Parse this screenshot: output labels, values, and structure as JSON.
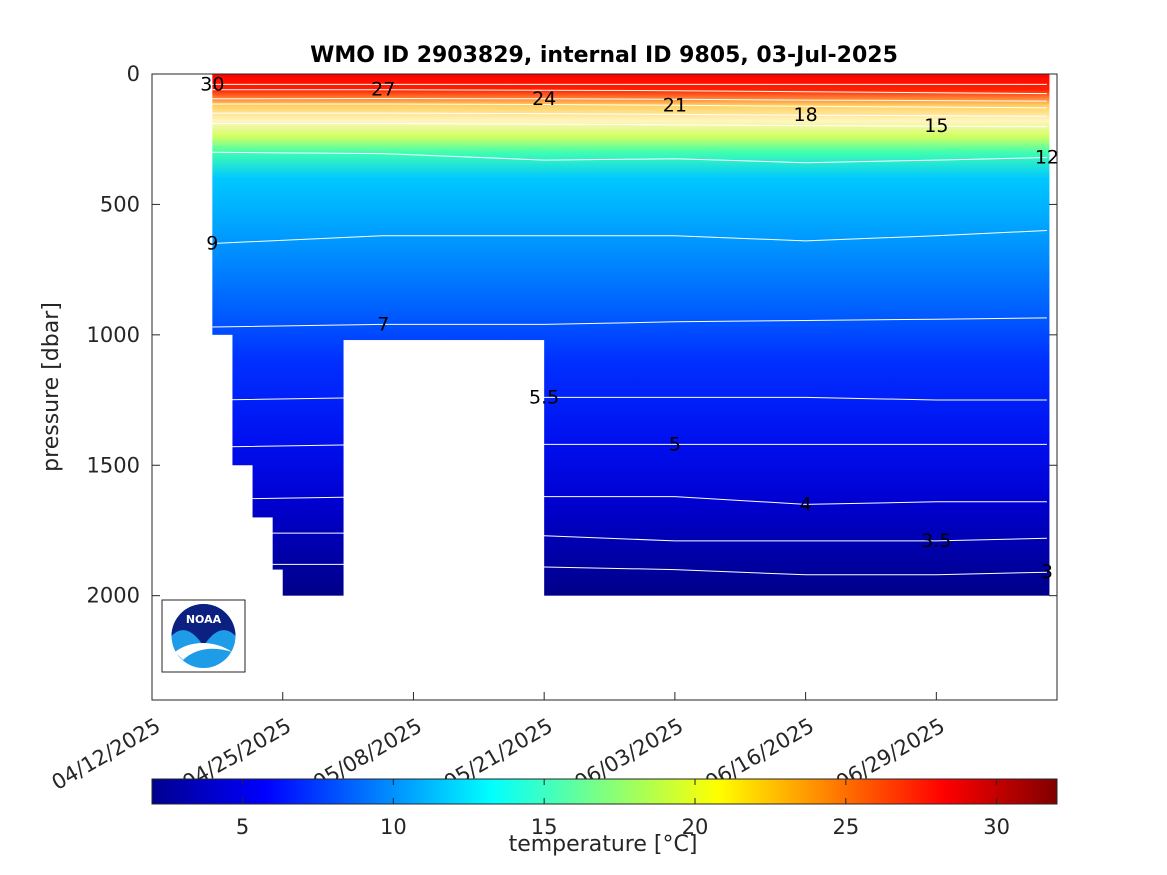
{
  "chart_data": {
    "type": "heatmap",
    "title": "WMO ID 2903829, internal ID 9805, 03-Jul-2025",
    "ylabel": "pressure [dbar]",
    "xlabel": "",
    "y_reversed": true,
    "ylim": [
      0,
      2400
    ],
    "yticks": [
      0,
      500,
      1000,
      1500,
      2000
    ],
    "xlim": [
      "04/12/2025",
      "07/11/2025"
    ],
    "xticks": [
      "04/12/2025",
      "04/25/2025",
      "05/08/2025",
      "05/21/2025",
      "06/03/2025",
      "06/16/2025",
      "06/29/2025"
    ],
    "colorbar": {
      "label": "temperature [°C]",
      "range": [
        2,
        32
      ],
      "ticks": [
        5,
        10,
        15,
        20,
        25,
        30
      ],
      "colormap": "jet"
    },
    "profile_dates": [
      "04/18/2025",
      "04/19/2025",
      "04/20/2025",
      "04/21/2025",
      "04/22/2025",
      "04/23/2025",
      "04/24/2025",
      "04/25/2025",
      "05/01/2025",
      "05/11/2025",
      "05/21/2025",
      "05/31/2025",
      "06/10/2025",
      "06/20/2025",
      "06/30/2025",
      "07/10/2025"
    ],
    "profile_max_pressure": [
      1000,
      1000,
      1500,
      1500,
      1700,
      1700,
      1900,
      2000,
      1020,
      1020,
      2000,
      2000,
      2000,
      2000,
      2000,
      2000
    ],
    "data_gap": {
      "from": "04/26/2025",
      "to": "05/20/2025",
      "below_dbar": 1020
    },
    "isotherms": [
      {
        "temperature": 30,
        "label": "30",
        "pressure": [
          40,
          40,
          40,
          40,
          40,
          40,
          40
        ]
      },
      {
        "temperature": 27,
        "label": "27",
        "pressure": [
          60,
          60,
          62,
          64,
          68,
          72,
          75
        ]
      },
      {
        "temperature": 24,
        "label": "24",
        "pressure": [
          95,
          94,
          95,
          97,
          100,
          102,
          104
        ]
      },
      {
        "temperature": 21,
        "label": "21",
        "pressure": [
          115,
          115,
          117,
          120,
          124,
          127,
          130
        ]
      },
      {
        "temperature": 18,
        "label": "18",
        "pressure": [
          150,
          150,
          152,
          155,
          158,
          160,
          162
        ]
      },
      {
        "temperature": 15,
        "label": "15",
        "pressure": [
          190,
          190,
          192,
          195,
          198,
          200,
          202
        ]
      },
      {
        "temperature": 12,
        "label": "12",
        "pressure": [
          300,
          305,
          330,
          325,
          340,
          330,
          320
        ]
      },
      {
        "temperature": 9,
        "label": "9",
        "pressure": [
          650,
          620,
          620,
          620,
          640,
          620,
          600
        ]
      },
      {
        "temperature": 7,
        "label": "7",
        "pressure": [
          970,
          960,
          960,
          950,
          945,
          940,
          935
        ]
      },
      {
        "temperature": 5.5,
        "label": "5.5",
        "pressure": [
          1250,
          1240,
          1240,
          1240,
          1240,
          1250,
          1250
        ]
      },
      {
        "temperature": 5,
        "label": "5",
        "pressure": [
          1430,
          1420,
          1420,
          1420,
          1420,
          1420,
          1420
        ]
      },
      {
        "temperature": 4,
        "label": "4",
        "pressure": [
          1630,
          1620,
          1620,
          1620,
          1650,
          1640,
          1640
        ]
      },
      {
        "temperature": 3.5,
        "label": "3.5",
        "pressure": [
          1760,
          1760,
          1770,
          1790,
          1790,
          1790,
          1780
        ]
      },
      {
        "temperature": 3,
        "label": "3",
        "pressure": [
          1880,
          1880,
          1890,
          1900,
          1920,
          1920,
          1910
        ]
      }
    ],
    "isotherm_x": [
      "04/18/2025",
      "05/05/2025",
      "05/21/2025",
      "06/03/2025",
      "06/16/2025",
      "06/29/2025",
      "07/10/2025"
    ]
  },
  "logo": {
    "text": "NOAA"
  }
}
